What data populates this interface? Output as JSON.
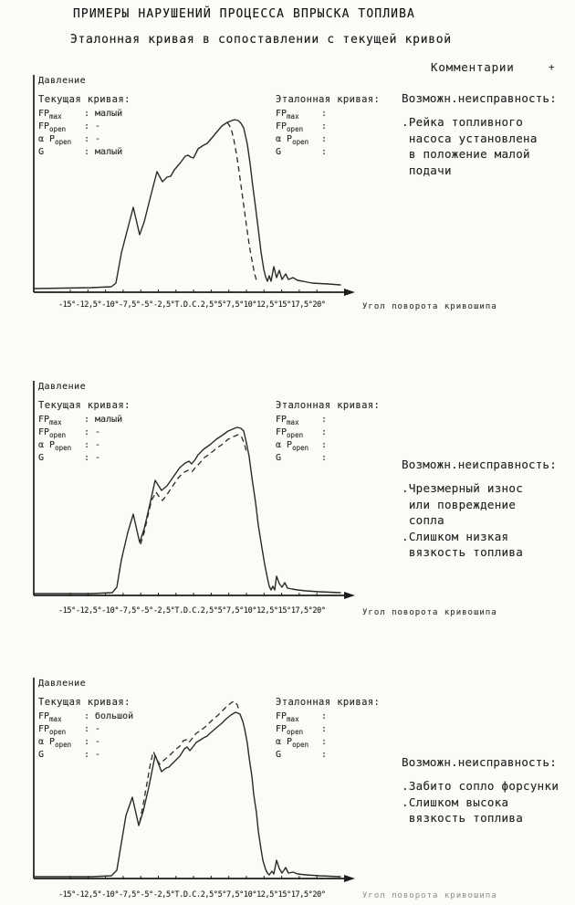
{
  "page": {
    "title": "ПРИМЕРЫ НАРУШЕНИЙ ПРОЦЕССА ВПРЫСКА ТОПЛИВА",
    "subtitle": "Эталонная кривая в сопоставлении с текущей кривой",
    "comments_header": "Комментарии",
    "comments_marker": "+"
  },
  "axis": {
    "y_label": "Давление",
    "x_label": "Угол поворота кривошипа",
    "ticks": [
      "-15°",
      "-12,5°",
      "-10°",
      "-7,5°",
      "-5°",
      "-2,5°",
      "T.D.C.",
      "2,5°",
      "5°",
      "7,5°",
      "10°",
      "12,5°",
      "15°",
      "17,5°",
      "20°"
    ]
  },
  "legend_params": [
    {
      "base": "FP",
      "sub": "max"
    },
    {
      "base": "FP",
      "sub": "open"
    },
    {
      "base": "α P",
      "sub": "open"
    },
    {
      "base": "G",
      "sub": ""
    }
  ],
  "charts": [
    {
      "current_title": "Текущая кривая:",
      "reference_title": "Эталонная кривая:",
      "current_values": [
        ": малый",
        ": -",
        ": -",
        ": малый"
      ],
      "reference_values": [
        ":",
        ":",
        ":",
        ":"
      ],
      "fault_header": "Возможн.неисправность:",
      "fault_text": ".Рейка топливного\n насоса установлена\n в положение малой\n подачи",
      "curves": {
        "solid": [
          [
            7,
            236
          ],
          [
            70,
            235
          ],
          [
            92,
            234
          ],
          [
            97,
            230
          ],
          [
            103,
            197
          ],
          [
            110,
            170
          ],
          [
            116,
            147
          ],
          [
            123,
            177
          ],
          [
            128,
            163
          ],
          [
            135,
            135
          ],
          [
            142,
            108
          ],
          [
            148,
            119
          ],
          [
            153,
            114
          ],
          [
            157,
            113
          ],
          [
            161,
            106
          ],
          [
            167,
            99
          ],
          [
            173,
            91
          ],
          [
            176,
            90
          ],
          [
            179,
            92
          ],
          [
            182,
            93
          ],
          [
            187,
            83
          ],
          [
            193,
            79
          ],
          [
            197,
            77
          ],
          [
            203,
            70
          ],
          [
            208,
            64
          ],
          [
            213,
            58
          ],
          [
            219,
            54
          ],
          [
            224,
            52
          ],
          [
            227,
            51
          ],
          [
            231,
            52
          ],
          [
            234,
            55
          ],
          [
            237,
            60
          ],
          [
            241,
            78
          ],
          [
            244,
            99
          ],
          [
            247,
            124
          ],
          [
            250,
            147
          ],
          [
            253,
            171
          ],
          [
            256,
            196
          ],
          [
            259,
            215
          ],
          [
            261,
            223
          ],
          [
            263,
            228
          ],
          [
            265,
            222
          ],
          [
            267,
            228
          ],
          [
            270,
            212
          ],
          [
            273,
            224
          ],
          [
            276,
            216
          ],
          [
            279,
            226
          ],
          [
            283,
            220
          ],
          [
            286,
            226
          ],
          [
            291,
            224
          ],
          [
            296,
            227
          ],
          [
            302,
            228
          ],
          [
            312,
            230
          ],
          [
            330,
            231
          ],
          [
            343,
            232
          ]
        ],
        "dashed": [
          [
            219,
            54
          ],
          [
            223,
            60
          ],
          [
            226,
            72
          ],
          [
            229,
            88
          ],
          [
            232,
            108
          ],
          [
            235,
            130
          ],
          [
            238,
            152
          ],
          [
            241,
            174
          ],
          [
            244,
            194
          ],
          [
            247,
            210
          ],
          [
            249,
            220
          ],
          [
            251,
            227
          ],
          [
            252,
            230
          ]
        ]
      }
    },
    {
      "current_title": "Текущая кривая:",
      "reference_title": "Эталонная кривая:",
      "current_values": [
        ": малый",
        ": -",
        ": -",
        ": -"
      ],
      "reference_values": [
        ":",
        ":",
        ":",
        ":"
      ],
      "fault_header": "Возможн.неисправность:",
      "fault_text": ".Чрезмерный износ\n или повреждение\n сопла\n.Слишком низкая\n вязкость топлива",
      "curves": {
        "solid": [
          [
            7,
            235
          ],
          [
            70,
            235
          ],
          [
            93,
            234
          ],
          [
            98,
            228
          ],
          [
            103,
            198
          ],
          [
            110,
            168
          ],
          [
            116,
            148
          ],
          [
            123,
            179
          ],
          [
            128,
            164
          ],
          [
            134,
            138
          ],
          [
            140,
            111
          ],
          [
            147,
            122
          ],
          [
            153,
            117
          ],
          [
            160,
            107
          ],
          [
            167,
            97
          ],
          [
            173,
            92
          ],
          [
            177,
            90
          ],
          [
            180,
            93
          ],
          [
            184,
            88
          ],
          [
            187,
            83
          ],
          [
            193,
            77
          ],
          [
            200,
            72
          ],
          [
            207,
            66
          ],
          [
            213,
            62
          ],
          [
            220,
            57
          ],
          [
            227,
            54
          ],
          [
            230,
            53
          ],
          [
            234,
            54
          ],
          [
            237,
            57
          ],
          [
            240,
            70
          ],
          [
            243,
            85
          ],
          [
            246,
            108
          ],
          [
            250,
            135
          ],
          [
            253,
            160
          ],
          [
            257,
            185
          ],
          [
            260,
            203
          ],
          [
            263,
            218
          ],
          [
            265,
            227
          ],
          [
            267,
            231
          ],
          [
            269,
            227
          ],
          [
            271,
            231
          ],
          [
            273,
            216
          ],
          [
            276,
            224
          ],
          [
            279,
            228
          ],
          [
            282,
            223
          ],
          [
            285,
            229
          ],
          [
            290,
            230
          ],
          [
            296,
            231
          ],
          [
            305,
            232
          ],
          [
            320,
            233
          ],
          [
            343,
            234
          ]
        ],
        "dashed": [
          [
            124,
            181
          ],
          [
            128,
            168
          ],
          [
            132,
            150
          ],
          [
            136,
            133
          ],
          [
            141,
            124
          ],
          [
            145,
            130
          ],
          [
            148,
            133
          ],
          [
            152,
            128
          ],
          [
            158,
            119
          ],
          [
            164,
            110
          ],
          [
            170,
            103
          ],
          [
            176,
            100
          ],
          [
            180,
            102
          ],
          [
            184,
            97
          ],
          [
            188,
            93
          ],
          [
            194,
            86
          ],
          [
            200,
            82
          ],
          [
            207,
            76
          ],
          [
            213,
            72
          ],
          [
            220,
            66
          ],
          [
            226,
            63
          ],
          [
            231,
            61
          ],
          [
            235,
            64
          ],
          [
            238,
            72
          ],
          [
            240,
            80
          ]
        ]
      }
    },
    {
      "current_title": "Текущая кривая:",
      "reference_title": "Эталонная кривая:",
      "current_values": [
        ": большой",
        ": -",
        ": -",
        ": -"
      ],
      "reference_values": [
        ":",
        ":",
        ":",
        ":"
      ],
      "fault_header": "Возможн.неисправность:",
      "fault_text": ".Забито сопло форсунки\n.Слишком высока\n вязкость топлива",
      "curves": {
        "solid": [
          [
            7,
            220
          ],
          [
            70,
            220
          ],
          [
            92,
            219
          ],
          [
            98,
            213
          ],
          [
            103,
            183
          ],
          [
            108,
            153
          ],
          [
            115,
            133
          ],
          [
            122,
            164
          ],
          [
            127,
            148
          ],
          [
            133,
            122
          ],
          [
            140,
            87
          ],
          [
            147,
            105
          ],
          [
            152,
            101
          ],
          [
            155,
            100
          ],
          [
            161,
            94
          ],
          [
            167,
            88
          ],
          [
            172,
            80
          ],
          [
            175,
            78
          ],
          [
            178,
            82
          ],
          [
            182,
            77
          ],
          [
            185,
            73
          ],
          [
            190,
            70
          ],
          [
            193,
            68
          ],
          [
            197,
            66
          ],
          [
            200,
            63
          ],
          [
            207,
            57
          ],
          [
            213,
            52
          ],
          [
            218,
            47
          ],
          [
            223,
            43
          ],
          [
            228,
            40
          ],
          [
            231,
            41
          ],
          [
            233,
            42
          ],
          [
            236,
            50
          ],
          [
            238,
            58
          ],
          [
            241,
            74
          ],
          [
            243,
            90
          ],
          [
            246,
            110
          ],
          [
            248,
            130
          ],
          [
            251,
            150
          ],
          [
            253,
            170
          ],
          [
            256,
            190
          ],
          [
            258,
            202
          ],
          [
            261,
            212
          ],
          [
            263,
            216
          ],
          [
            265,
            218
          ],
          [
            268,
            214
          ],
          [
            270,
            217
          ],
          [
            273,
            202
          ],
          [
            276,
            211
          ],
          [
            279,
            216
          ],
          [
            283,
            210
          ],
          [
            286,
            216
          ],
          [
            291,
            215
          ],
          [
            296,
            217
          ],
          [
            305,
            218
          ],
          [
            320,
            219
          ],
          [
            343,
            220
          ]
        ],
        "dashed": [
          [
            123,
            161
          ],
          [
            127,
            140
          ],
          [
            131,
            118
          ],
          [
            135,
            95
          ],
          [
            138,
            83
          ],
          [
            142,
            92
          ],
          [
            145,
            97
          ],
          [
            150,
            92
          ],
          [
            155,
            88
          ],
          [
            161,
            82
          ],
          [
            167,
            77
          ],
          [
            171,
            71
          ],
          [
            174,
            70
          ],
          [
            177,
            73
          ],
          [
            181,
            68
          ],
          [
            185,
            63
          ],
          [
            191,
            59
          ],
          [
            196,
            55
          ],
          [
            202,
            49
          ],
          [
            208,
            44
          ],
          [
            214,
            38
          ],
          [
            219,
            33
          ],
          [
            224,
            29
          ],
          [
            227,
            28
          ],
          [
            230,
            32
          ],
          [
            232,
            38
          ]
        ]
      }
    }
  ]
}
